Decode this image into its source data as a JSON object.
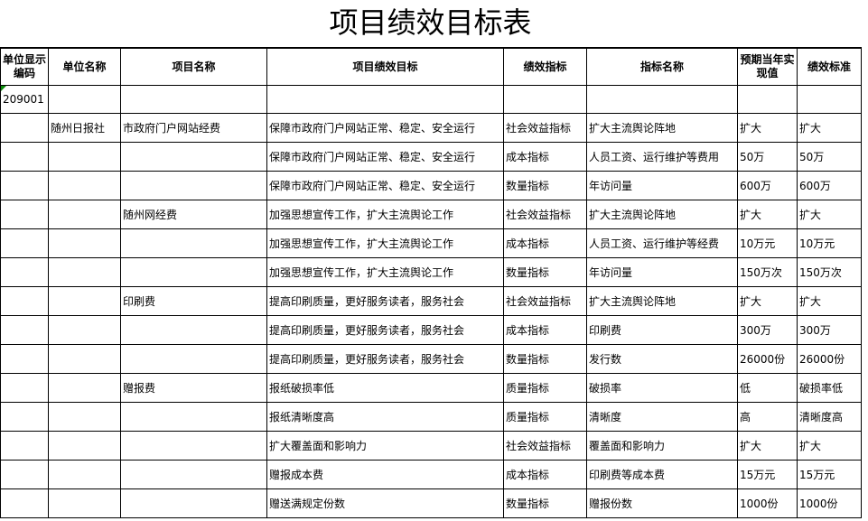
{
  "title": "项目绩效目标表",
  "headers": [
    "单位显示编码",
    "单位名称",
    "项目名称",
    "项目绩效目标",
    "绩效指标",
    "指标名称",
    "预期当年实现值",
    "绩效标准"
  ],
  "unit_code": "209001",
  "rows": [
    [
      "",
      "随州日报社",
      "市政府门户网站经费",
      "保障市政府门户网站正常、稳定、安全运行",
      "社会效益指标",
      "扩大主流舆论阵地",
      "扩大",
      "扩大"
    ],
    [
      "",
      "",
      "",
      "保障市政府门户网站正常、稳定、安全运行",
      "成本指标",
      "人员工资、运行维护等费用",
      "50万",
      "50万"
    ],
    [
      "",
      "",
      "",
      "保障市政府门户网站正常、稳定、安全运行",
      "数量指标",
      "年访问量",
      "600万",
      "600万"
    ],
    [
      "",
      "",
      "随州网经费",
      "加强思想宣传工作，扩大主流舆论工作",
      "社会效益指标",
      "扩大主流舆论阵地",
      "扩大",
      "扩大"
    ],
    [
      "",
      "",
      "",
      "加强思想宣传工作，扩大主流舆论工作",
      "成本指标",
      "人员工资、运行维护等经费",
      "10万元",
      "10万元"
    ],
    [
      "",
      "",
      "",
      "加强思想宣传工作，扩大主流舆论工作",
      "数量指标",
      "年访问量",
      "150万次",
      "150万次"
    ],
    [
      "",
      "",
      "印刷费",
      "提高印刷质量，更好服务读者，服务社会",
      "社会效益指标",
      "扩大主流舆论阵地",
      "扩大",
      "扩大"
    ],
    [
      "",
      "",
      "",
      "提高印刷质量，更好服务读者，服务社会",
      "成本指标",
      "印刷费",
      "300万",
      "300万"
    ],
    [
      "",
      "",
      "",
      "提高印刷质量，更好服务读者，服务社会",
      "数量指标",
      "发行数",
      "26000份",
      "26000份"
    ],
    [
      "",
      "",
      "赠报费",
      "报纸破损率低",
      "质量指标",
      "破损率",
      "低",
      "破损率低"
    ],
    [
      "",
      "",
      "",
      "报纸清晰度高",
      "质量指标",
      "清晰度",
      "高",
      "清晰度高"
    ],
    [
      "",
      "",
      "",
      "扩大覆盖面和影响力",
      "社会效益指标",
      "覆盖面和影响力",
      "扩大",
      "扩大"
    ],
    [
      "",
      "",
      "",
      "赠报成本费",
      "成本指标",
      "印刷费等成本费",
      "15万元",
      "15万元"
    ],
    [
      "",
      "",
      "",
      "赠送满规定份数",
      "数量指标",
      "赠报份数",
      "1000份",
      "1000份"
    ]
  ]
}
